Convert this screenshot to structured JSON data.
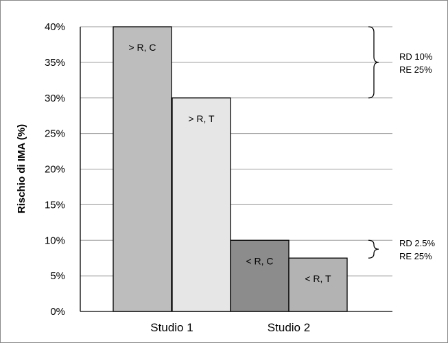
{
  "chart_data": {
    "type": "bar",
    "title": "",
    "xlabel": "",
    "ylabel": "Rischio di IMA (%)",
    "ylim": [
      0,
      40
    ],
    "yticks": [
      0,
      5,
      10,
      15,
      20,
      25,
      30,
      35,
      40
    ],
    "ytick_labels": [
      "0%",
      "5%",
      "10%",
      "15%",
      "20%",
      "25%",
      "30%",
      "35%",
      "40%"
    ],
    "grid": true,
    "categories": [
      "Studio 1",
      "Studio 2"
    ],
    "bars": [
      {
        "group": "Studio 1",
        "label": "> R, C",
        "value": 40,
        "color": "#bdbdbd"
      },
      {
        "group": "Studio 1",
        "label": "> R, T",
        "value": 30,
        "color": "#e6e6e6"
      },
      {
        "group": "Studio 2",
        "label": "< R, C",
        "value": 10,
        "color": "#8c8c8c"
      },
      {
        "group": "Studio 2",
        "label": "< R, T",
        "value": 7.5,
        "color": "#b3b3b3"
      }
    ],
    "annotations": [
      {
        "from": 30,
        "to": 40,
        "line1": "RD 10%",
        "line2": "RE 25%"
      },
      {
        "from": 7.5,
        "to": 10,
        "line1": "RD 2.5%",
        "line2": "RE 25%"
      }
    ]
  }
}
